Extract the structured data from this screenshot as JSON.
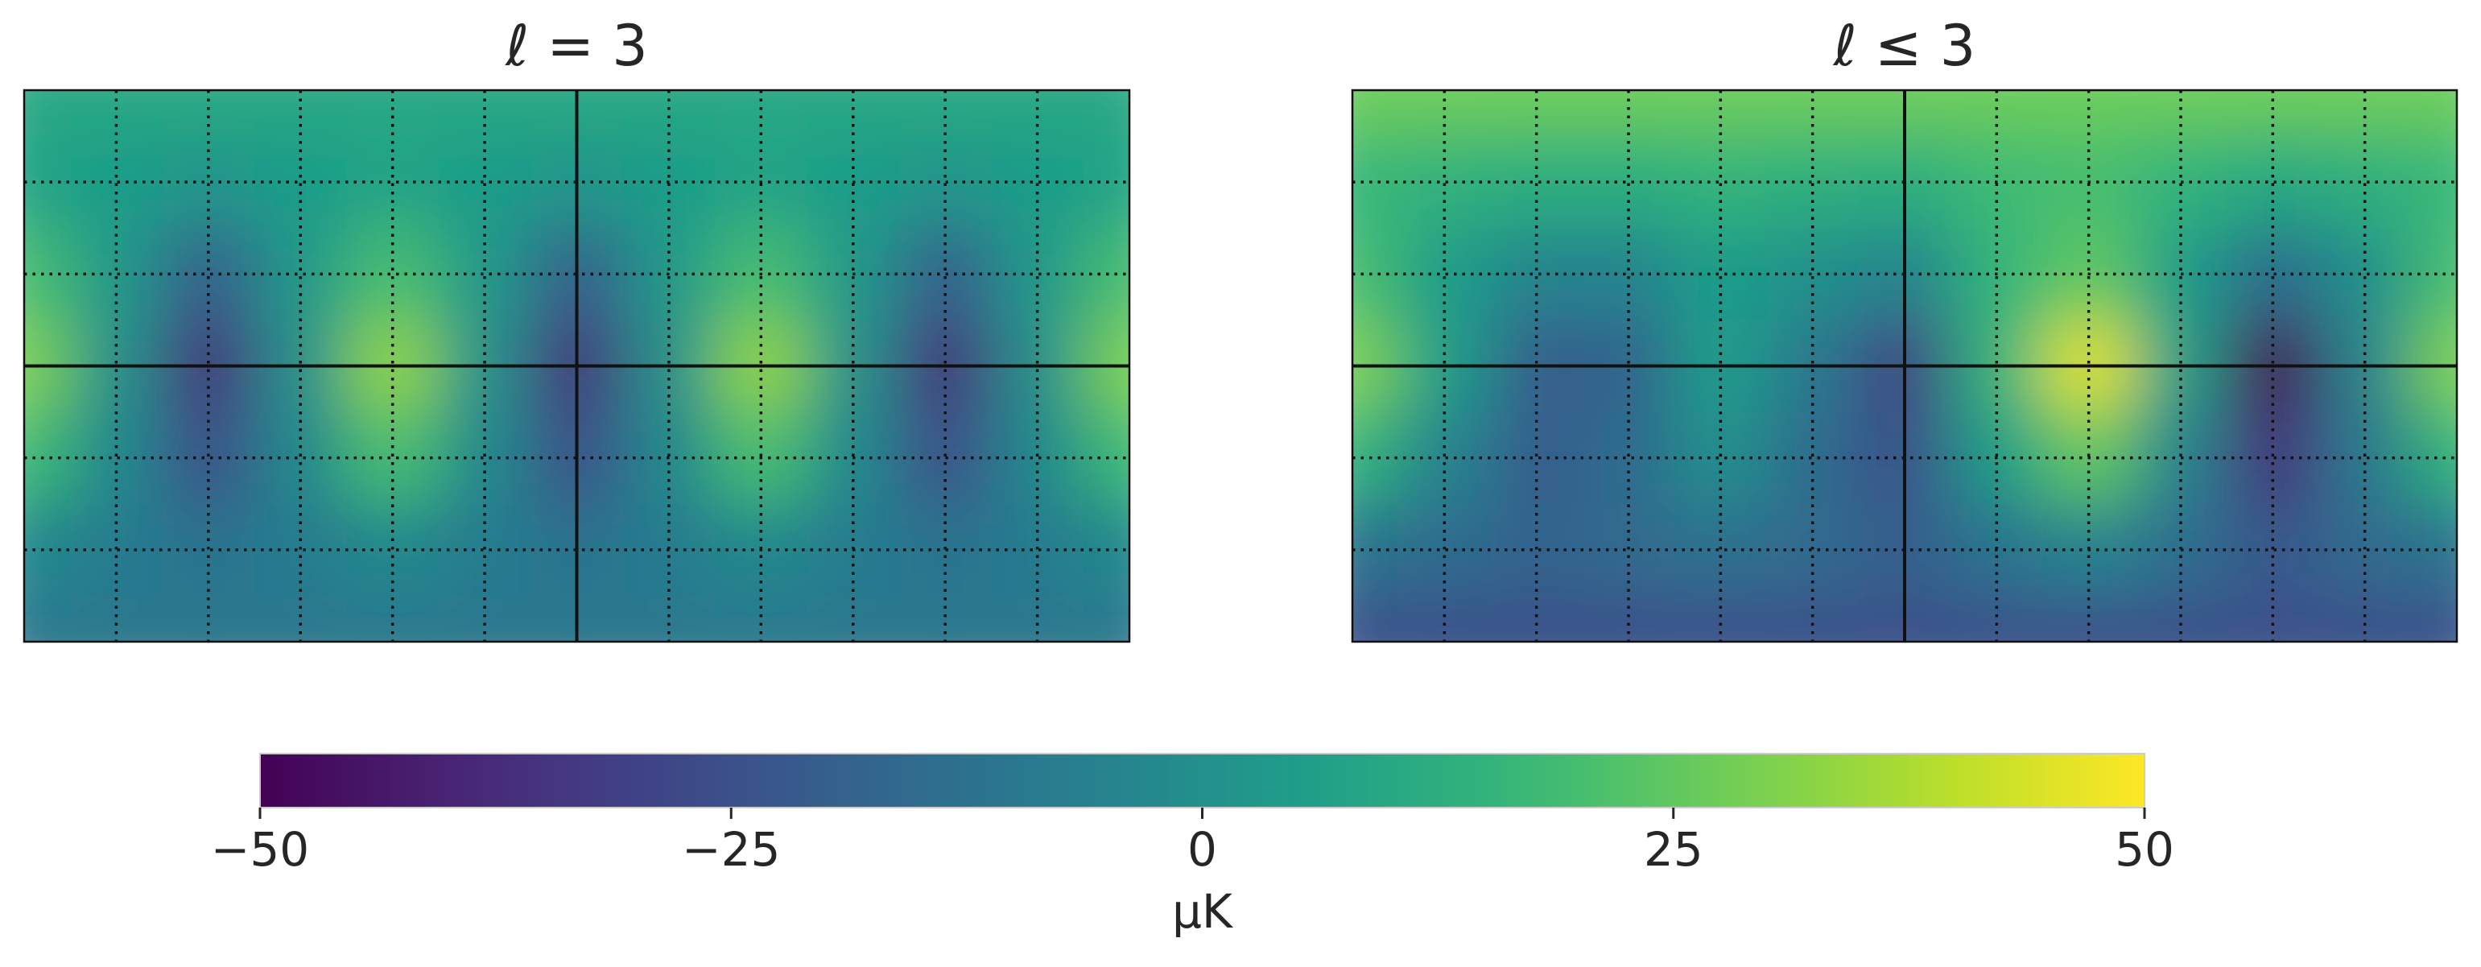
{
  "chart_data": [
    {
      "type": "heatmap",
      "title": "ℓ = 3",
      "colormap": "viridis",
      "zlim": [
        -50,
        50
      ],
      "grid": true,
      "values": [
        [
          10,
          10,
          10,
          10,
          10,
          10,
          10,
          10,
          10,
          10,
          10,
          10,
          10
        ],
        [
          8,
          5,
          2,
          5,
          8,
          5,
          2,
          5,
          8,
          5,
          2,
          5,
          8
        ],
        [
          20,
          3,
          -20,
          3,
          20,
          3,
          -20,
          3,
          20,
          3,
          -20,
          3,
          20
        ],
        [
          30,
          0,
          -35,
          0,
          33,
          0,
          -35,
          0,
          33,
          0,
          -35,
          0,
          30
        ],
        [
          18,
          -3,
          -25,
          -3,
          20,
          -3,
          -25,
          -3,
          20,
          -3,
          -25,
          -3,
          18
        ],
        [
          -3,
          -8,
          -12,
          -8,
          -3,
          -8,
          -12,
          -8,
          -3,
          -8,
          -12,
          -8,
          -3
        ],
        [
          -10,
          -10,
          -10,
          -10,
          -10,
          -10,
          -10,
          -10,
          -10,
          -10,
          -10,
          -10,
          -10
        ]
      ]
    },
    {
      "type": "heatmap",
      "title": "ℓ ≤ 3",
      "colormap": "viridis",
      "zlim": [
        -50,
        50
      ],
      "grid": true,
      "values": [
        [
          27,
          27,
          27,
          27,
          27,
          27,
          27,
          27,
          27,
          27,
          27,
          27,
          27
        ],
        [
          17,
          14,
          12,
          12,
          15,
          13,
          12,
          18,
          20,
          15,
          10,
          13,
          17
        ],
        [
          20,
          5,
          -5,
          -5,
          5,
          0,
          -5,
          15,
          25,
          5,
          -15,
          0,
          20
        ],
        [
          30,
          5,
          -20,
          -18,
          5,
          -10,
          -30,
          15,
          45,
          5,
          -48,
          -5,
          30
        ],
        [
          15,
          -5,
          -20,
          -15,
          0,
          -15,
          -25,
          5,
          25,
          -5,
          -35,
          -10,
          15
        ],
        [
          -12,
          -15,
          -18,
          -16,
          -13,
          -16,
          -20,
          -12,
          -5,
          -14,
          -22,
          -16,
          -12
        ],
        [
          -25,
          -25,
          -25,
          -25,
          -25,
          -25,
          -25,
          -25,
          -25,
          -25,
          -25,
          -25,
          -25
        ]
      ]
    }
  ],
  "colorbar": {
    "label": "μK",
    "colormap": "viridis",
    "lim": [
      -50,
      50
    ],
    "ticks": [
      {
        "value": -50,
        "label": "−50"
      },
      {
        "value": -25,
        "label": "−25"
      },
      0,
      25,
      50
    ]
  }
}
